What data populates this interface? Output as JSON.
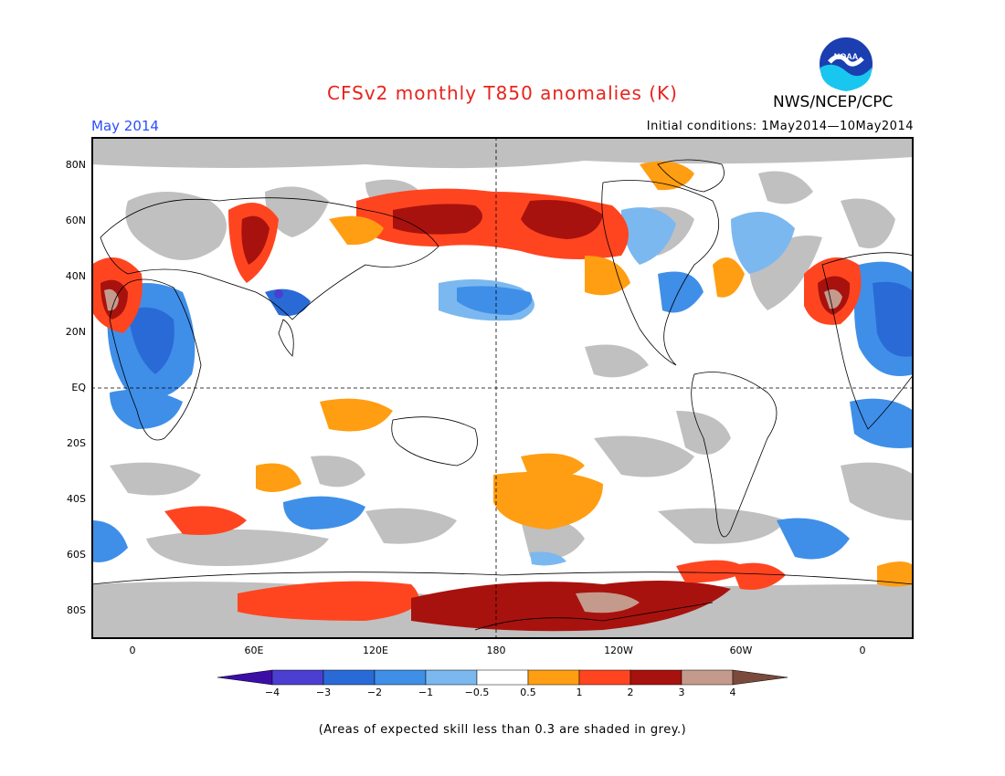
{
  "title": "CFSv2 monthly T850 anomalies (K)",
  "agency": "NWS/NCEP/CPC",
  "logo_text": "NOAA",
  "month": "May 2014",
  "initial_conditions": "Initial conditions: 1May2014—10May2014",
  "footnote": "(Areas of expected skill less than 0.3 are shaded in grey.)",
  "lat_labels": [
    "80N",
    "60N",
    "40N",
    "20N",
    "EQ",
    "20S",
    "40S",
    "60S",
    "80S"
  ],
  "lon_labels": [
    "0",
    "60E",
    "120E",
    "180",
    "120W",
    "60W",
    "0"
  ],
  "colorbar": {
    "labels": [
      "−4",
      "−3",
      "−2",
      "−1",
      "−0.5",
      "0.5",
      "1",
      "2",
      "3",
      "4"
    ],
    "colors": [
      "#3c0ea8",
      "#4a3fd0",
      "#2a6ad6",
      "#3f8fe8",
      "#7bb8f0",
      "#ffffff",
      "#ff9e12",
      "#ff4520",
      "#a8120e",
      "#c49a8c",
      "#7a4a3c"
    ]
  },
  "colors": {
    "skill_grey": "#c0c0c0",
    "land_outline": "#000000"
  }
}
